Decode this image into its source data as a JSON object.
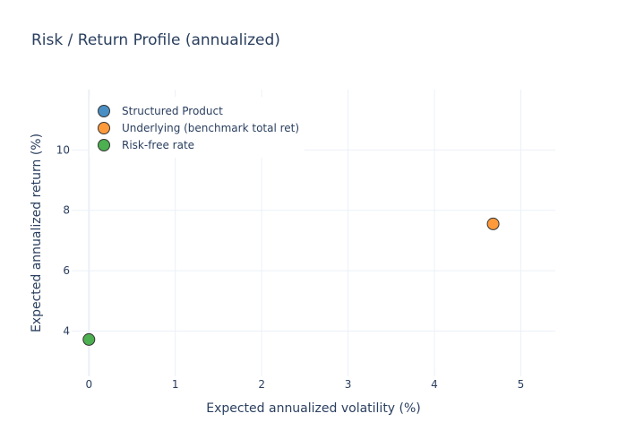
{
  "chart_data": {
    "type": "scatter",
    "title": "Risk / Return Profile (annualized)",
    "xlabel": "Expected annualized volatility (%)",
    "ylabel": "Expected annualized return (%)",
    "xlim": [
      -0.2,
      5.4
    ],
    "ylim": [
      2.5,
      12
    ],
    "xticks": [
      0,
      1,
      2,
      3,
      4,
      5
    ],
    "yticks": [
      4,
      6,
      8,
      10
    ],
    "grid": true,
    "legend_position": "top-left",
    "series": [
      {
        "name": "Structured Product",
        "color": "#4a8fc4",
        "points": []
      },
      {
        "name": "Underlying (benchmark total ret)",
        "color": "#ff9a3c",
        "points": [
          {
            "x": 4.68,
            "y": 7.55
          }
        ]
      },
      {
        "name": "Risk-free rate",
        "color": "#4caf50",
        "points": [
          {
            "x": 0.0,
            "y": 3.72
          }
        ]
      }
    ]
  }
}
